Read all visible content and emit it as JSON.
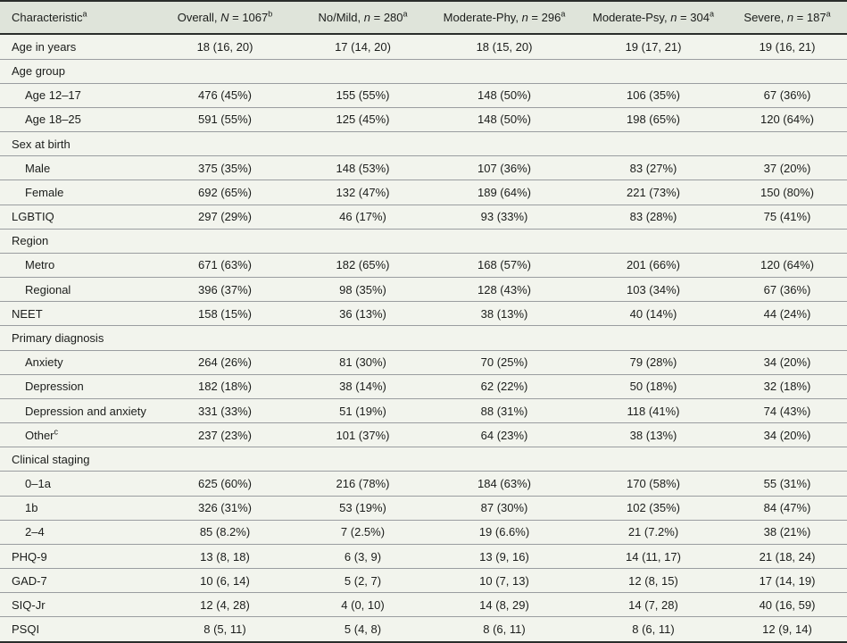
{
  "colors": {
    "header_bg": "#dfe4da",
    "body_bg": "#f2f4ed",
    "rule_dark": "#2a2d2b",
    "rule_light": "#9a9da0",
    "text": "#1b1d1b"
  },
  "table": {
    "columns": [
      {
        "label": "Characteristic",
        "sup": "a"
      },
      {
        "prefix": "Overall, ",
        "symbol": "N",
        "rest": " = 1067",
        "sup": "b"
      },
      {
        "prefix": "No/Mild, ",
        "symbol": "n",
        "rest": " = 280",
        "sup": "a"
      },
      {
        "prefix": "Moderate-Phy, ",
        "symbol": "n",
        "rest": " = 296",
        "sup": "a"
      },
      {
        "prefix": "Moderate-Psy, ",
        "symbol": "n",
        "rest": " = 304",
        "sup": "a"
      },
      {
        "prefix": "Severe, ",
        "symbol": "n",
        "rest": " = 187",
        "sup": "a"
      }
    ],
    "rows": [
      {
        "label": "Age in years",
        "indent": false,
        "values": [
          "18 (16, 20)",
          "17 (14, 20)",
          "18 (15, 20)",
          "19 (17, 21)",
          "19 (16, 21)"
        ]
      },
      {
        "label": "Age group",
        "indent": false,
        "values": [
          "",
          "",
          "",
          "",
          ""
        ]
      },
      {
        "label": "Age 12–17",
        "indent": true,
        "values": [
          "476 (45%)",
          "155 (55%)",
          "148 (50%)",
          "106 (35%)",
          "67 (36%)"
        ]
      },
      {
        "label": "Age 18–25",
        "indent": true,
        "values": [
          "591 (55%)",
          "125 (45%)",
          "148 (50%)",
          "198 (65%)",
          "120 (64%)"
        ]
      },
      {
        "label": "Sex at birth",
        "indent": false,
        "values": [
          "",
          "",
          "",
          "",
          ""
        ]
      },
      {
        "label": "Male",
        "indent": true,
        "values": [
          "375 (35%)",
          "148 (53%)",
          "107 (36%)",
          "83 (27%)",
          "37 (20%)"
        ]
      },
      {
        "label": "Female",
        "indent": true,
        "values": [
          "692 (65%)",
          "132 (47%)",
          "189 (64%)",
          "221 (73%)",
          "150 (80%)"
        ]
      },
      {
        "label": "LGBTIQ",
        "indent": false,
        "values": [
          "297 (29%)",
          "46 (17%)",
          "93 (33%)",
          "83 (28%)",
          "75 (41%)"
        ]
      },
      {
        "label": "Region",
        "indent": false,
        "values": [
          "",
          "",
          "",
          "",
          ""
        ]
      },
      {
        "label": "Metro",
        "indent": true,
        "values": [
          "671 (63%)",
          "182 (65%)",
          "168 (57%)",
          "201 (66%)",
          "120 (64%)"
        ]
      },
      {
        "label": "Regional",
        "indent": true,
        "values": [
          "396 (37%)",
          "98 (35%)",
          "128 (43%)",
          "103 (34%)",
          "67 (36%)"
        ]
      },
      {
        "label": "NEET",
        "indent": false,
        "values": [
          "158 (15%)",
          "36 (13%)",
          "38 (13%)",
          "40 (14%)",
          "44 (24%)"
        ]
      },
      {
        "label": "Primary diagnosis",
        "indent": false,
        "values": [
          "",
          "",
          "",
          "",
          ""
        ]
      },
      {
        "label": "Anxiety",
        "indent": true,
        "values": [
          "264 (26%)",
          "81 (30%)",
          "70 (25%)",
          "79 (28%)",
          "34 (20%)"
        ]
      },
      {
        "label": "Depression",
        "indent": true,
        "values": [
          "182 (18%)",
          "38 (14%)",
          "62 (22%)",
          "50 (18%)",
          "32 (18%)"
        ]
      },
      {
        "label": "Depression and anxiety",
        "indent": true,
        "values": [
          "331 (33%)",
          "51 (19%)",
          "88 (31%)",
          "118 (41%)",
          "74 (43%)"
        ]
      },
      {
        "label": "Other",
        "sup": "c",
        "indent": true,
        "values": [
          "237 (23%)",
          "101 (37%)",
          "64 (23%)",
          "38 (13%)",
          "34 (20%)"
        ]
      },
      {
        "label": "Clinical staging",
        "indent": false,
        "values": [
          "",
          "",
          "",
          "",
          ""
        ]
      },
      {
        "label": "0–1a",
        "indent": true,
        "values": [
          "625 (60%)",
          "216 (78%)",
          "184 (63%)",
          "170 (58%)",
          "55 (31%)"
        ]
      },
      {
        "label": "1b",
        "indent": true,
        "values": [
          "326 (31%)",
          "53 (19%)",
          "87 (30%)",
          "102 (35%)",
          "84 (47%)"
        ]
      },
      {
        "label": "2–4",
        "indent": true,
        "values": [
          "85 (8.2%)",
          "7 (2.5%)",
          "19 (6.6%)",
          "21 (7.2%)",
          "38 (21%)"
        ]
      },
      {
        "label": "PHQ-9",
        "indent": false,
        "values": [
          "13 (8, 18)",
          "6 (3, 9)",
          "13 (9, 16)",
          "14 (11, 17)",
          "21 (18, 24)"
        ]
      },
      {
        "label": "GAD-7",
        "indent": false,
        "values": [
          "10 (6, 14)",
          "5 (2, 7)",
          "10 (7, 13)",
          "12 (8, 15)",
          "17 (14, 19)"
        ]
      },
      {
        "label": "SIQ-Jr",
        "indent": false,
        "values": [
          "12 (4, 28)",
          "4 (0, 10)",
          "14 (8, 29)",
          "14 (7, 28)",
          "40 (16, 59)"
        ]
      },
      {
        "label": "PSQI",
        "indent": false,
        "values": [
          "8 (5, 11)",
          "5 (4, 8)",
          "8 (6, 11)",
          "8 (6, 11)",
          "12 (9, 14)"
        ]
      }
    ]
  }
}
